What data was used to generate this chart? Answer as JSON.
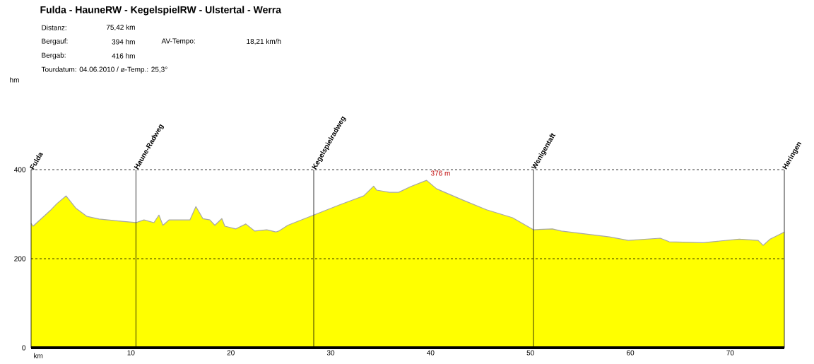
{
  "chart_data": {
    "type": "area",
    "title": "Fulda - HauneRW - KegelspielRW - Ulstertal - Werra",
    "xlabel": "km",
    "x": [
      0,
      0.2,
      2.0,
      2.6,
      3.5,
      4.5,
      5.6,
      6.8,
      9.1,
      10.5,
      11.3,
      12.3,
      12.8,
      13.2,
      13.8,
      15.1,
      15.9,
      16.5,
      17.2,
      17.9,
      18.4,
      19.1,
      19.4,
      20.5,
      21.5,
      22.4,
      23.6,
      24.5,
      24.8,
      25.7,
      28.3,
      30.9,
      33.3,
      34.3,
      34.6,
      35.9,
      36.8,
      38.0,
      39.6,
      40.6,
      43.2,
      45.6,
      48.2,
      50.3,
      52.2,
      53.1,
      57.9,
      59.8,
      63.0,
      63.9,
      67.3,
      70.9,
      72.8,
      73.3,
      74.0,
      74.9,
      75.42
    ],
    "series": [
      {
        "color": "#ffff00",
        "values": [
          279,
          273,
          310,
          324,
          341,
          313,
          295,
          289,
          284,
          281,
          287,
          281,
          298,
          275,
          287,
          287,
          287,
          317,
          290,
          287,
          275,
          290,
          273,
          267,
          278,
          262,
          265,
          260,
          262,
          275,
          298,
          321,
          341,
          363,
          354,
          349,
          349,
          362,
          376,
          357,
          332,
          310,
          292,
          265,
          267,
          262,
          249,
          241,
          246,
          238,
          236,
          244,
          241,
          230,
          244,
          254,
          260
        ]
      }
    ],
    "xlim": [
      0,
      75.42
    ],
    "ylim": [
      0,
      400
    ],
    "xticks": [
      10,
      20,
      30,
      40,
      50,
      60,
      70
    ],
    "yticks": [
      0,
      200,
      400
    ],
    "ref_lines": [
      {
        "axis": "y",
        "value": 200,
        "color": "#000000",
        "line_style": "dashed"
      },
      {
        "axis": "y",
        "value": 400,
        "color": "#000000",
        "line_style": "dashed"
      },
      {
        "axis": "x",
        "value": 0,
        "label": "Fulda",
        "color": "#000000"
      },
      {
        "axis": "x",
        "value": 10.5,
        "label": "Haune-Radweg",
        "color": "#000000"
      },
      {
        "axis": "x",
        "value": 28.3,
        "label": "Kegelspielradweg",
        "color": "#000000"
      },
      {
        "axis": "x",
        "value": 50.3,
        "label": "Wenigentaft",
        "color": "#000000"
      },
      {
        "axis": "x",
        "value": 75.42,
        "label": "Heringen",
        "color": "#000000"
      }
    ],
    "annotations": [
      "Distanz:",
      "75,42 km",
      "Bergauf:",
      "394 hm",
      "AV-Tempo:",
      "18,21 km/h",
      "Bergab:",
      "416 hm",
      "Tourdatum: 04.06.2010  /  ø-Temp.: 25,3°",
      "376 m",
      "hm"
    ]
  }
}
